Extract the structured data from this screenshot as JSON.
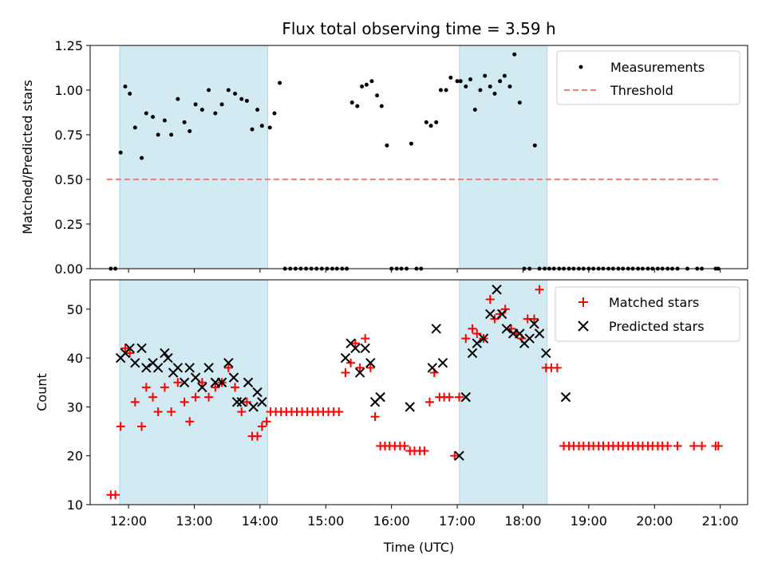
{
  "chart_data": [
    {
      "type": "scatter",
      "title": "Flux total observing time = 3.59 h",
      "xlabel": "",
      "ylabel": "Matched/Predicted stars",
      "x_unit": "time (UTC, decimal hours)",
      "xlim": [
        "11:25",
        "21:25"
      ],
      "ylim": [
        0,
        1.25
      ],
      "yticks": [
        "0.00",
        "0.25",
        "0.50",
        "0.75",
        "1.00",
        "1.25"
      ],
      "grid": false,
      "legend": {
        "placement": "top-right",
        "entries": [
          "Measurements",
          "Threshold"
        ]
      },
      "shaded_intervals": [
        [
          "11:52",
          "14:07"
        ],
        [
          "17:02",
          "18:22"
        ]
      ],
      "shade_color": "#add8e6",
      "series": [
        {
          "name": "Measurements",
          "marker": "dot",
          "color": "#000000",
          "x": [
            11.73,
            11.8,
            11.88,
            11.95,
            12.02,
            12.1,
            12.2,
            12.27,
            12.37,
            12.45,
            12.55,
            12.65,
            12.75,
            12.85,
            12.93,
            13.02,
            13.12,
            13.22,
            13.32,
            13.42,
            13.52,
            13.62,
            13.72,
            13.8,
            13.88,
            13.96,
            14.03,
            14.15,
            14.22,
            14.3,
            14.38,
            14.46,
            14.54,
            14.62,
            14.7,
            14.78,
            14.86,
            14.94,
            15.02,
            15.1,
            15.17,
            15.25,
            15.32,
            15.4,
            15.48,
            15.55,
            15.62,
            15.7,
            15.78,
            15.85,
            15.93,
            16.0,
            16.08,
            16.15,
            16.23,
            16.3,
            16.38,
            16.45,
            16.53,
            16.6,
            16.68,
            16.75,
            16.83,
            16.9,
            17.0,
            17.05,
            17.13,
            17.2,
            17.27,
            17.35,
            17.42,
            17.5,
            17.57,
            17.65,
            17.72,
            17.8,
            17.87,
            17.95,
            18.02,
            18.1,
            18.18,
            18.25,
            18.33,
            18.4,
            18.47,
            18.55,
            18.62,
            18.7,
            18.77,
            18.85,
            18.92,
            19.0,
            19.07,
            19.15,
            19.22,
            19.3,
            19.37,
            19.45,
            19.52,
            19.6,
            19.67,
            19.75,
            19.82,
            19.9,
            19.97,
            20.05,
            20.12,
            20.2,
            20.27,
            20.35,
            20.5,
            20.65,
            20.72,
            20.93,
            20.97
          ],
          "y": [
            0,
            0,
            0.65,
            1.02,
            0.98,
            0.79,
            0.62,
            0.87,
            0.85,
            0.75,
            0.83,
            0.75,
            0.95,
            0.82,
            0.77,
            0.92,
            0.89,
            1.0,
            0.87,
            0.92,
            1.0,
            0.98,
            0.95,
            0.94,
            0.78,
            0.89,
            0.8,
            0.79,
            0.87,
            1.04,
            0,
            0,
            0,
            0,
            0,
            0,
            0,
            0,
            0,
            0,
            0,
            0,
            0,
            0.93,
            0.91,
            1.02,
            1.03,
            1.05,
            0.97,
            0.91,
            0.69,
            0,
            0,
            0,
            0,
            0.7,
            0,
            0,
            0.82,
            0.8,
            0.82,
            1.0,
            1.0,
            1.07,
            1.05,
            1.05,
            1.02,
            1.06,
            0.89,
            1.0,
            1.08,
            1.02,
            0.98,
            1.05,
            1.08,
            1.02,
            1.2,
            0.93,
            0,
            0,
            0.69,
            0,
            0,
            0,
            0,
            0,
            0,
            0,
            0,
            0,
            0,
            0,
            0,
            0,
            0,
            0,
            0,
            0,
            0,
            0,
            0,
            0,
            0,
            0,
            0,
            0,
            0,
            0,
            0,
            0,
            0,
            0,
            0,
            0,
            0
          ]
        },
        {
          "name": "Threshold",
          "marker": "dashed-line",
          "color": "#f08080",
          "x": [
            11.67,
            20.99
          ],
          "y": [
            0.5,
            0.5
          ]
        }
      ]
    },
    {
      "type": "scatter",
      "title": "",
      "xlabel": "Time (UTC)",
      "ylabel": "Count",
      "x_unit": "time (UTC, decimal hours)",
      "xlim": [
        "11:25",
        "21:25"
      ],
      "ylim": [
        10,
        56
      ],
      "xticks": [
        "12:00",
        "13:00",
        "14:00",
        "15:00",
        "16:00",
        "17:00",
        "18:00",
        "19:00",
        "20:00",
        "21:00"
      ],
      "yticks": [
        "10",
        "20",
        "30",
        "40",
        "50"
      ],
      "grid": false,
      "legend": {
        "placement": "top-right",
        "entries": [
          "Matched stars",
          "Predicted stars"
        ]
      },
      "shaded_intervals": [
        [
          "11:52",
          "14:07"
        ],
        [
          "17:02",
          "18:22"
        ]
      ],
      "shade_color": "#add8e6",
      "series": [
        {
          "name": "Matched stars",
          "marker": "plus",
          "color": "#ff0000",
          "x": [
            11.73,
            11.8,
            11.88,
            11.95,
            12.02,
            12.1,
            12.2,
            12.27,
            12.37,
            12.45,
            12.55,
            12.65,
            12.75,
            12.85,
            12.93,
            13.02,
            13.12,
            13.22,
            13.32,
            13.42,
            13.52,
            13.62,
            13.72,
            13.8,
            13.88,
            13.96,
            14.03,
            14.1,
            14.16,
            14.24,
            14.32,
            14.4,
            14.48,
            14.56,
            14.64,
            14.72,
            14.8,
            14.88,
            14.96,
            15.04,
            15.12,
            15.2,
            15.3,
            15.38,
            15.45,
            15.52,
            15.6,
            15.68,
            15.75,
            15.83,
            15.9,
            15.97,
            16.05,
            16.13,
            16.2,
            16.28,
            16.35,
            16.43,
            16.5,
            16.58,
            16.65,
            16.73,
            16.8,
            16.88,
            16.96,
            17.03,
            17.13,
            17.23,
            17.3,
            17.4,
            17.5,
            17.57,
            17.65,
            17.73,
            17.82,
            17.9,
            17.98,
            18.07,
            18.17,
            18.25,
            18.35,
            18.43,
            18.52,
            18.62,
            18.7,
            18.77,
            18.85,
            18.92,
            19.0,
            19.07,
            19.15,
            19.22,
            19.3,
            19.37,
            19.45,
            19.52,
            19.6,
            19.67,
            19.75,
            19.82,
            19.9,
            19.97,
            20.05,
            20.12,
            20.2,
            20.35,
            20.6,
            20.72,
            20.93,
            20.97
          ],
          "y": [
            12,
            12,
            26,
            42,
            41,
            31,
            26,
            34,
            32,
            29,
            34,
            29,
            35,
            31,
            27,
            32,
            35,
            32,
            34,
            35,
            38,
            34,
            29,
            31,
            24,
            24,
            26,
            27,
            29,
            29,
            29,
            29,
            29,
            29,
            29,
            29,
            29,
            29,
            29,
            29,
            29,
            29,
            37,
            39,
            43,
            38,
            44,
            38,
            28,
            22,
            22,
            22,
            22,
            22,
            22,
            21,
            21,
            21,
            21,
            31,
            37,
            32,
            32,
            32,
            20,
            32,
            44,
            46,
            45,
            44,
            52,
            48,
            49,
            50,
            46,
            45,
            44,
            48,
            48,
            54,
            38,
            38,
            38,
            22,
            22,
            22,
            22,
            22,
            22,
            22,
            22,
            22,
            22,
            22,
            22,
            22,
            22,
            22,
            22,
            22,
            22,
            22,
            22,
            22,
            22,
            22,
            22,
            22,
            22,
            22
          ]
        },
        {
          "name": "Predicted stars",
          "marker": "x",
          "color": "#000000",
          "x": [
            11.88,
            11.95,
            12.02,
            12.1,
            12.2,
            12.27,
            12.37,
            12.45,
            12.55,
            12.6,
            12.68,
            12.75,
            12.85,
            12.93,
            13.02,
            13.12,
            13.22,
            13.32,
            13.42,
            13.52,
            13.6,
            13.65,
            13.72,
            13.82,
            13.9,
            13.96,
            14.03,
            15.3,
            15.38,
            15.45,
            15.52,
            15.6,
            15.68,
            15.75,
            15.83,
            16.28,
            16.62,
            16.68,
            16.78,
            17.03,
            17.13,
            17.23,
            17.3,
            17.4,
            17.5,
            17.6,
            17.68,
            17.75,
            17.85,
            17.95,
            18.02,
            18.1,
            18.17,
            18.25,
            18.35,
            18.65
          ],
          "y": [
            40,
            41,
            42,
            39,
            42,
            38,
            39,
            38,
            41,
            40,
            37,
            38,
            35,
            38,
            36,
            34,
            38,
            35,
            35,
            39,
            36,
            31,
            31,
            35,
            30,
            33,
            31,
            40,
            43,
            42,
            37,
            42,
            39,
            31,
            32,
            30,
            38,
            46,
            39,
            20,
            32,
            41,
            43,
            44,
            49,
            54,
            49,
            46,
            45,
            45,
            43,
            44,
            47,
            45,
            41,
            32
          ]
        }
      ]
    }
  ]
}
